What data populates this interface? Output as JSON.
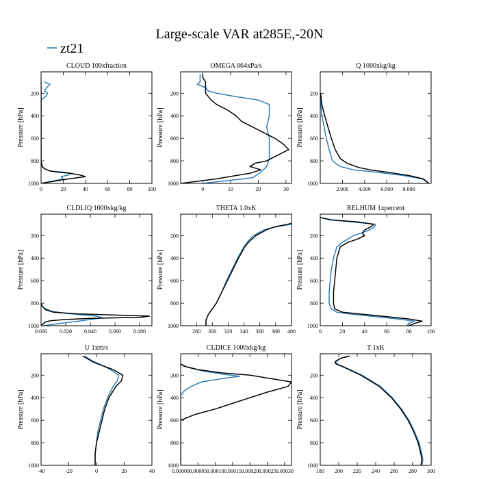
{
  "title": "Large-scale VAR at285E,-20N",
  "legend": {
    "label": "zt21",
    "color": "#2c7fb8"
  },
  "colors": {
    "ref": "#000000",
    "zt21": "#2c7fb8"
  },
  "chart_data": [
    {
      "type": "line",
      "title": "CLOUD  100xfraction",
      "ylabel": "Pressure [hPa]",
      "xlim": [
        0,
        100
      ],
      "ylim": [
        1000,
        10
      ],
      "yticks": [
        200,
        400,
        600,
        800,
        1000
      ],
      "xticks": [
        0,
        20,
        40,
        60,
        80,
        100
      ],
      "xticklabels": [
        "0",
        "20",
        "40",
        "60",
        "80",
        "100"
      ],
      "series": [
        {
          "id": "zt21",
          "y": [
            100,
            120,
            150,
            180,
            200,
            230,
            260,
            300,
            400,
            600,
            800,
            850,
            870,
            890,
            900,
            910,
            925,
            940,
            960,
            980,
            1000
          ],
          "x": [
            3,
            8,
            5,
            3,
            6,
            4,
            0,
            0,
            0,
            0,
            0,
            1,
            3,
            8,
            20,
            28,
            25,
            18,
            20,
            10,
            0
          ]
        },
        {
          "id": "ref",
          "y": [
            100,
            600,
            800,
            850,
            870,
            890,
            900,
            910,
            925,
            940,
            960,
            980,
            1000
          ],
          "x": [
            0,
            0,
            0,
            1,
            3,
            8,
            15,
            26,
            35,
            40,
            25,
            12,
            0
          ]
        }
      ]
    },
    {
      "type": "line",
      "title": "OMEGA  864xPa/s",
      "ylabel": "Pressure [hPa]",
      "xlim": [
        -8,
        32
      ],
      "ylim": [
        1000,
        10
      ],
      "yticks": [
        200,
        400,
        600,
        800,
        1000
      ],
      "xticks": [
        0,
        10,
        20,
        30
      ],
      "xticklabels": [
        "0",
        "10",
        "20",
        "30"
      ],
      "series": [
        {
          "id": "zt21",
          "y": [
            30,
            100,
            120,
            150,
            180,
            200,
            230,
            260,
            300,
            400,
            500,
            600,
            700,
            780,
            850,
            900,
            950,
            1000
          ],
          "x": [
            -1,
            -1,
            -2,
            1,
            2,
            5,
            12,
            20,
            24,
            24,
            23,
            24,
            24,
            24,
            23,
            21,
            18,
            0
          ]
        },
        {
          "id": "ref",
          "y": [
            30,
            60,
            100,
            150,
            200,
            230,
            260,
            300,
            350,
            400,
            450,
            500,
            550,
            600,
            650,
            700,
            750,
            800,
            820,
            850,
            880,
            910,
            930,
            960,
            1000
          ],
          "x": [
            0,
            0,
            1,
            1,
            1,
            2,
            3,
            5,
            9,
            12,
            14,
            18,
            22,
            26,
            29,
            31,
            27,
            23,
            19,
            17,
            21,
            17,
            12,
            5,
            -8
          ]
        }
      ]
    },
    {
      "type": "line",
      "title": "Q  1000xkg/kg",
      "ylabel": "Pressure [hPa]",
      "xlim": [
        0,
        10000
      ],
      "ylim": [
        1000,
        10
      ],
      "yticks": [
        200,
        400,
        600,
        800,
        1000
      ],
      "xticks": [
        2000,
        4000,
        6000,
        8000
      ],
      "xticklabels": [
        "2.000",
        "4.000",
        "6.000",
        "8.000"
      ],
      "series": [
        {
          "id": "zt21",
          "y": [
            200,
            300,
            400,
            500,
            600,
            700,
            800,
            850,
            880,
            900,
            930,
            960,
            1000
          ],
          "x": [
            20,
            60,
            150,
            350,
            550,
            800,
            1100,
            1800,
            3000,
            5000,
            7500,
            9200,
            9800
          ]
        },
        {
          "id": "ref",
          "y": [
            200,
            300,
            400,
            500,
            600,
            700,
            780,
            820,
            860,
            880,
            900,
            930,
            960,
            1000
          ],
          "x": [
            30,
            150,
            400,
            700,
            1000,
            1350,
            1800,
            2400,
            3500,
            4500,
            6000,
            8000,
            9300,
            9800
          ]
        }
      ]
    },
    {
      "type": "line",
      "title": "CLDLIQ  1000xkg/kg",
      "ylabel": "Pressure [hPa]",
      "xlim": [
        0,
        0.09
      ],
      "ylim": [
        1000,
        10
      ],
      "yticks": [
        200,
        400,
        600,
        800,
        1000
      ],
      "xticks": [
        0,
        0.02,
        0.04,
        0.06,
        0.08
      ],
      "xticklabels": [
        "0.000",
        "0.020",
        "0.040",
        "0.060",
        "0.080"
      ],
      "series": [
        {
          "id": "zt21",
          "y": [
            800,
            840,
            870,
            890,
            900,
            915,
            930,
            945,
            960,
            980,
            1000
          ],
          "x": [
            0,
            0.002,
            0.008,
            0.02,
            0.03,
            0.045,
            0.05,
            0.04,
            0.03,
            0.015,
            0.002
          ]
        },
        {
          "id": "ref",
          "y": [
            800,
            830,
            860,
            880,
            895,
            905,
            915,
            925,
            935,
            945,
            955,
            965,
            980,
            1000
          ],
          "x": [
            0,
            0.001,
            0.004,
            0.01,
            0.03,
            0.06,
            0.088,
            0.08,
            0.04,
            0.02,
            0.008,
            0.004,
            0.002,
            0
          ]
        }
      ]
    },
    {
      "type": "line",
      "title": "THETA  1.0xK",
      "ylabel": "Pressure [hPa]",
      "xlim": [
        260,
        400
      ],
      "ylim": [
        1000,
        10
      ],
      "yticks": [
        200,
        400,
        600,
        800,
        1000
      ],
      "xticks": [
        280,
        300,
        320,
        340,
        360,
        380,
        400
      ],
      "xticklabels": [
        "280",
        "300",
        "320",
        "340",
        "360",
        "380",
        "400"
      ],
      "series": [
        {
          "id": "zt21",
          "y": [
            100,
            110,
            130,
            150,
            200,
            250,
            300,
            400,
            500,
            600,
            700,
            800,
            850,
            900,
            950,
            1000
          ],
          "x": [
            400,
            390,
            375,
            365,
            352,
            345,
            340,
            332,
            325,
            318,
            312,
            305,
            300,
            295,
            292,
            292
          ]
        },
        {
          "id": "ref",
          "y": [
            90,
            100,
            120,
            150,
            200,
            250,
            300,
            400,
            500,
            600,
            700,
            800,
            850,
            900,
            950,
            1000
          ],
          "x": [
            400,
            395,
            380,
            368,
            355,
            347,
            341,
            333,
            326,
            319,
            312,
            305,
            300,
            295,
            292,
            292
          ]
        }
      ]
    },
    {
      "type": "line",
      "title": "RELHUM  1xpercent",
      "ylabel": "Pressure [hPa]",
      "xlim": [
        0,
        100
      ],
      "ylim": [
        1000,
        10
      ],
      "yticks": [
        200,
        400,
        600,
        800,
        1000
      ],
      "xticks": [
        0,
        20,
        40,
        60,
        80,
        100
      ],
      "xticklabels": [
        "0",
        "20",
        "40",
        "60",
        "80",
        "100"
      ],
      "series": [
        {
          "id": "zt21",
          "y": [
            40,
            60,
            80,
            100,
            130,
            160,
            200,
            260,
            300,
            400,
            500,
            600,
            700,
            800,
            850,
            880,
            900,
            920,
            940,
            960,
            980,
            1000
          ],
          "x": [
            0,
            8,
            30,
            50,
            48,
            42,
            30,
            20,
            15,
            12,
            10,
            9,
            8,
            8,
            10,
            15,
            30,
            50,
            70,
            85,
            80,
            78
          ]
        },
        {
          "id": "ref",
          "y": [
            40,
            60,
            80,
            100,
            120,
            150,
            180,
            200,
            230,
            260,
            300,
            400,
            500,
            600,
            700,
            800,
            850,
            880,
            900,
            920,
            940,
            960,
            980,
            1000
          ],
          "x": [
            0,
            10,
            35,
            48,
            46,
            40,
            38,
            40,
            34,
            25,
            18,
            15,
            14,
            13,
            12,
            12,
            13,
            20,
            40,
            60,
            80,
            92,
            85,
            80
          ]
        }
      ]
    },
    {
      "type": "line",
      "title": "U  1xm/s",
      "ylabel": "Pressure [hPa]",
      "xlim": [
        -40,
        40
      ],
      "ylim": [
        1000,
        10
      ],
      "yticks": [
        200,
        400,
        600,
        800,
        1000
      ],
      "xticks": [
        -40,
        -20,
        0,
        20,
        40
      ],
      "xticklabels": [
        "-40",
        "-20",
        "0",
        "20",
        "40"
      ],
      "series": [
        {
          "id": "zt21",
          "y": [
            30,
            50,
            80,
            100,
            150,
            200,
            250,
            300,
            400,
            500,
            600,
            700,
            800,
            900,
            1000
          ],
          "x": [
            -8,
            -6,
            -2,
            2,
            10,
            16,
            15,
            12,
            8,
            5,
            3,
            1,
            0,
            -1,
            -1
          ]
        },
        {
          "id": "ref",
          "y": [
            30,
            50,
            80,
            100,
            150,
            200,
            250,
            300,
            400,
            500,
            600,
            700,
            800,
            900,
            1000
          ],
          "x": [
            -10,
            -7,
            -3,
            1,
            12,
            19,
            18,
            14,
            9,
            6,
            4,
            2,
            0,
            -1,
            -1
          ]
        }
      ]
    },
    {
      "type": "line",
      "title": "CLDICE  1000xkg/kg",
      "ylabel": "Pressure [hPa]",
      "xlim": [
        0,
        0.00032
      ],
      "ylim": [
        1000,
        10
      ],
      "yticks": [
        200,
        400,
        600,
        800,
        1000
      ],
      "xticks": [
        0,
        5e-05,
        0.0001,
        0.00015,
        0.0002,
        0.00025,
        0.0003
      ],
      "xticklabels": [
        "0.00000",
        "0.00005",
        "0.00010",
        "0.00015",
        "0.00020",
        "0.00025",
        "0.00030"
      ],
      "series": [
        {
          "id": "zt21",
          "y": [
            100,
            130,
            160,
            190,
            210,
            230,
            260,
            300,
            340,
            380,
            420,
            1000
          ],
          "x": [
            0,
            2e-05,
            6e-05,
            0.00012,
            0.00017,
            0.00012,
            6e-05,
            3e-05,
            1e-05,
            0,
            0,
            0
          ]
        },
        {
          "id": "ref",
          "y": [
            100,
            120,
            150,
            180,
            200,
            230,
            260,
            300,
            350,
            400,
            450,
            500,
            550,
            600,
            1000
          ],
          "x": [
            0,
            1e-05,
            5e-05,
            0.00012,
            0.0002,
            0.00026,
            0.00032,
            0.00031,
            0.00025,
            0.0002,
            0.00015,
            0.0001,
            4e-05,
            0,
            0
          ]
        }
      ]
    },
    {
      "type": "line",
      "title": "T  1xK",
      "ylabel": "Pressure [hPa]",
      "xlim": [
        180,
        300
      ],
      "ylim": [
        1000,
        10
      ],
      "yticks": [
        200,
        400,
        600,
        800,
        1000
      ],
      "xticks": [
        180,
        200,
        220,
        240,
        260,
        280,
        300
      ],
      "xticklabels": [
        "180",
        "200",
        "220",
        "240",
        "260",
        "280",
        "300"
      ],
      "series": [
        {
          "id": "zt21",
          "y": [
            30,
            50,
            80,
            100,
            120,
            150,
            200,
            300,
            400,
            500,
            600,
            700,
            800,
            900,
            950,
            1000
          ],
          "x": [
            210,
            202,
            197,
            198,
            204,
            212,
            225,
            245,
            258,
            268,
            276,
            282,
            287,
            290,
            291,
            290
          ]
        },
        {
          "id": "ref",
          "y": [
            30,
            50,
            80,
            100,
            120,
            150,
            200,
            300,
            400,
            500,
            600,
            700,
            800,
            900,
            950,
            1000
          ],
          "x": [
            212,
            202,
            196,
            197,
            203,
            211,
            224,
            244,
            257,
            267,
            275,
            281,
            286,
            289,
            290,
            289
          ]
        }
      ]
    }
  ]
}
